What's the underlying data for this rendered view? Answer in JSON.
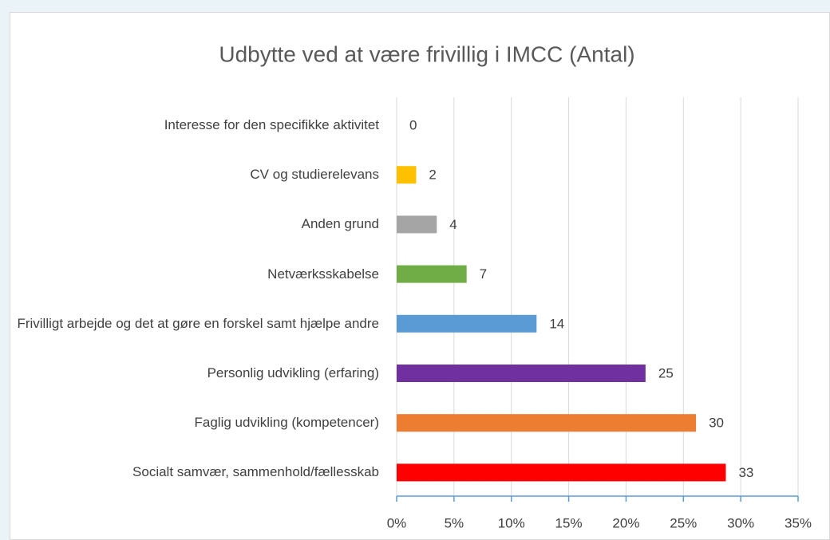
{
  "chart_data": {
    "type": "bar",
    "orientation": "horizontal",
    "title": "Udbytte ved at være frivillig i IMCC (Antal)",
    "categories": [
      "Interesse for den specifikke aktivitet",
      "CV og studierelevans",
      "Anden grund",
      "Netværksskabelse",
      "Frivilligt arbejde og det at gøre en forskel samt hjælpe andre",
      "Personlig udvikling (erfaring)",
      "Faglig udvikling (kompetencer)",
      "Socialt samvær, sammenhold/fællesskab"
    ],
    "values": [
      0,
      1.7,
      3.5,
      6.1,
      12.2,
      21.7,
      26.1,
      28.7
    ],
    "counts": [
      0,
      2,
      4,
      7,
      14,
      25,
      30,
      33
    ],
    "colors": [
      "#5b9bd5",
      "#ffc000",
      "#a5a5a5",
      "#70ad47",
      "#5b9bd5",
      "#7030a0",
      "#ed7d31",
      "#ff0000"
    ],
    "xlim": [
      0,
      35
    ],
    "xticks": [
      {
        "value": 0,
        "label": "0%"
      },
      {
        "value": 5,
        "label": "5%"
      },
      {
        "value": 10,
        "label": "10%"
      },
      {
        "value": 15,
        "label": "15%"
      },
      {
        "value": 20,
        "label": "20%"
      },
      {
        "value": 25,
        "label": "25%"
      },
      {
        "value": 30,
        "label": "30%"
      },
      {
        "value": 35,
        "label": "35%"
      }
    ],
    "grid": true
  }
}
